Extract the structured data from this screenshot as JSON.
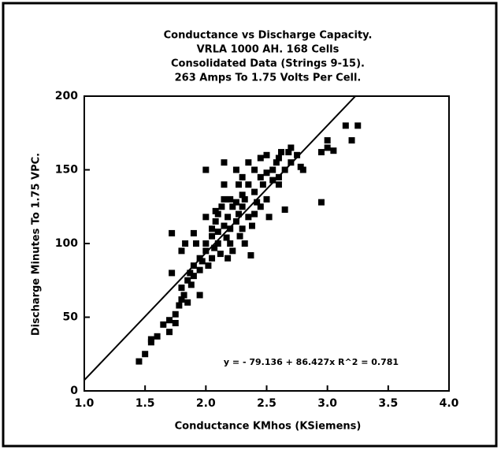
{
  "chart_data": {
    "type": "scatter",
    "title": [
      "Conductance vs Discharge Capacity.",
      "VRLA 1000 AH. 168 Cells",
      "Consolidated Data (Strings 9-15).",
      "263 Amps To 1.75 Volts Per Cell."
    ],
    "x_label": "Conductance KMhos (KSiemens)",
    "y_label": "Discharge Minutes To 1.75 VPC.",
    "annotation": "y = - 79.136 + 86.427x    R^2 = 0.781",
    "trendline": {
      "intercept": -79.136,
      "slope": 86.427
    },
    "color": "#000000",
    "xlim": [
      1,
      4
    ],
    "ylim": [
      0,
      200
    ],
    "xticks": [
      {
        "value": 1,
        "label": "1.0"
      },
      {
        "value": 1.5,
        "label": "1.5"
      },
      {
        "value": 2,
        "label": "2.0"
      },
      {
        "value": 2.5,
        "label": "2.5"
      },
      {
        "value": 3,
        "label": "3.0"
      },
      {
        "value": 3.5,
        "label": "3.5"
      },
      {
        "value": 4,
        "label": "4.0"
      }
    ],
    "yticks": [
      0,
      50,
      100,
      150,
      200
    ],
    "x": [
      1.45,
      1.5,
      1.55,
      1.55,
      1.6,
      1.65,
      1.7,
      1.7,
      1.75,
      1.75,
      1.72,
      1.78,
      1.8,
      1.8,
      1.82,
      1.8,
      1.85,
      1.85,
      1.87,
      1.88,
      1.9,
      1.9,
      1.92,
      1.9,
      1.95,
      1.95,
      1.97,
      2.0,
      2.0,
      2.0,
      2.02,
      2.05,
      2.05,
      2.07,
      2.08,
      2.1,
      2.1,
      2.1,
      2.12,
      2.13,
      2.15,
      2.15,
      2.15,
      2.17,
      2.18,
      2.2,
      2.2,
      2.2,
      2.22,
      2.22,
      2.25,
      2.25,
      2.25,
      2.27,
      2.28,
      2.3,
      2.3,
      2.3,
      2.32,
      2.32,
      2.35,
      2.35,
      2.37,
      2.38,
      2.4,
      2.4,
      2.4,
      2.42,
      2.45,
      2.45,
      2.47,
      2.5,
      2.5,
      2.52,
      2.55,
      2.55,
      2.58,
      2.6,
      2.6,
      2.62,
      2.65,
      2.65,
      2.7,
      2.7,
      2.75,
      2.78,
      2.8,
      2.95,
      2.95,
      3.0,
      3.0,
      3.05,
      3.15,
      3.2,
      3.25,
      1.72,
      1.83,
      2.0,
      2.08,
      2.18,
      2.27,
      2.35,
      2.45,
      2.6,
      2.68,
      2.15,
      2.3,
      2.5,
      1.95,
      2.05
    ],
    "y": [
      20,
      25,
      33,
      35,
      37,
      45,
      40,
      48,
      52,
      46,
      107,
      58,
      62,
      70,
      65,
      95,
      60,
      75,
      80,
      72,
      78,
      85,
      100,
      107,
      90,
      82,
      88,
      95,
      100,
      150,
      85,
      105,
      110,
      97,
      115,
      100,
      108,
      120,
      93,
      125,
      155,
      140,
      112,
      104,
      118,
      130,
      100,
      110,
      125,
      95,
      128,
      115,
      150,
      120,
      105,
      145,
      125,
      110,
      100,
      130,
      118,
      140,
      92,
      112,
      135,
      120,
      150,
      128,
      145,
      125,
      140,
      160,
      130,
      118,
      150,
      143,
      155,
      158,
      145,
      162,
      150,
      123,
      165,
      155,
      160,
      152,
      150,
      128,
      162,
      165,
      170,
      163,
      180,
      170,
      180,
      80,
      100,
      118,
      122,
      90,
      140,
      155,
      158,
      140,
      162,
      130,
      133,
      148,
      65,
      90
    ]
  }
}
